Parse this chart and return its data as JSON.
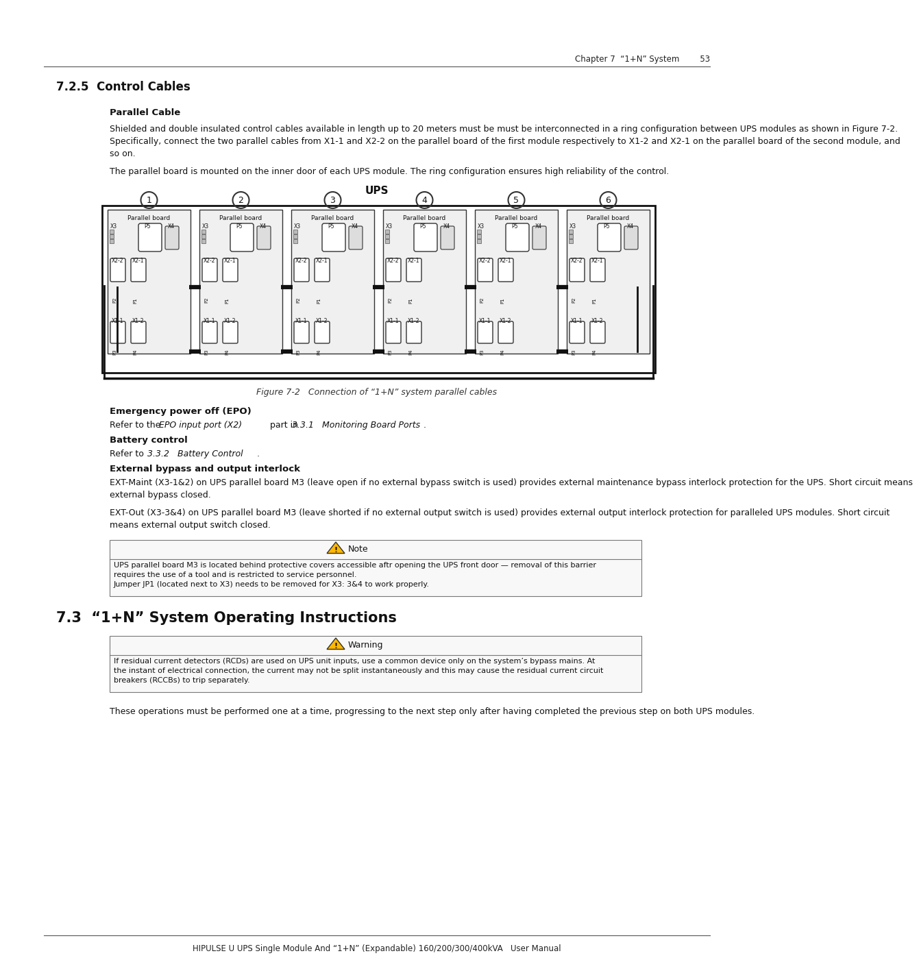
{
  "page_bg": "#ffffff",
  "header_text": "Chapter 7  “1+N” System        53",
  "footer_text": "HIPULSE U UPS Single Module And “1+N” (Expandable) 160/200/300/400kVA   User Manual",
  "section_title": "7.2.5  Control Cables",
  "subsection1_title": "Parallel Cable",
  "para1": "Shielded and double insulated control cables available in length up to 20 meters must be must be interconnected in a ring configuration between UPS modules as shown in Figure 7-2. Specifically, connect the two parallel cables from X1-1 and X2-2 on the parallel board of the first module respectively to X1-2 and X2-1 on the parallel board of the second module, and so on.",
  "para2": "The parallel board is mounted on the inner door of each UPS module. The ring configuration ensures high reliability of the control.",
  "figure_caption": "Figure 7-2   Connection of “1+N” system parallel cables",
  "subsection2_title": "Emergency power off (EPO)",
  "para3_pre": "Refer to the ",
  "para3_italic1": "EPO input port (X2)",
  "para3_mid": " part in ",
  "para3_italic2": "3.3.1   Monitoring Board Ports",
  "para3_end": ".",
  "subsection3_title": "Battery control",
  "para4_pre": "Refer to ",
  "para4_italic1": "3.3.2   Battery Control",
  "para4_end": ".",
  "subsection4_title": "External bypass and output interlock",
  "para5": "EXT-Maint (X3-1&2) on UPS parallel board M3 (leave open if no external bypass switch is used) provides external maintenance bypass interlock protection for the UPS. Short circuit means external bypass closed.",
  "para6": "EXT-Out (X3-3&4) on UPS parallel board M3 (leave shorted if no external output switch is used) provides external output interlock protection for paralleled UPS modules. Short circuit means external output switch closed.",
  "note_text_line1": "UPS parallel board M3 is located behind protective covers accessible aftr opening the UPS front door — removal of this barrier",
  "note_text_line2": "requires the use of a tool and is restricted to service personnel.",
  "note_text_line3": "Jumper JP1 (located next to X3) needs to be removed for X3: 3&4 to work properly.",
  "section2_title": "7.3  “1+N” System Operating Instructions",
  "warning_text_line1": "If residual current detectors (RCDs) are used on UPS unit inputs, use a common device only on the system’s bypass mains. At",
  "warning_text_line2": "the instant of electrical connection, the current may not be split instantaneously and this may cause the residual current circuit",
  "warning_text_line3": "breakers (RCCBs) to trip separately.",
  "para7": "These operations must be performed one at a time, progressing to the next step only after having completed the previous step on both UPS modules."
}
